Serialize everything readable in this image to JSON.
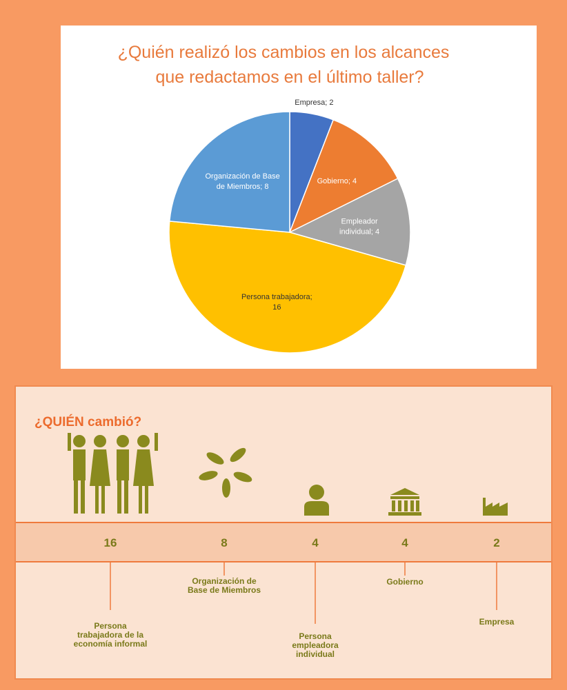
{
  "chart_data": {
    "type": "pie",
    "title": [
      "¿Quién realizó los cambios en los alcances",
      "que redactamos en el último taller?"
    ],
    "categories": [
      "Empresa",
      "Gobierno",
      "Empleador individual",
      "Persona trabajadora",
      "Organización de Base de Miembros"
    ],
    "values": [
      2,
      4,
      4,
      16,
      8
    ],
    "value_labels": [
      "Empresa; 2",
      "Gobierno; 4",
      "Empleador individual; 4",
      "Persona trabajadora; 16",
      "Organización de Base de Miembros; 8"
    ],
    "colors": [
      "#4472c4",
      "#ed7d31",
      "#a5a5a5",
      "#ffc000",
      "#5b9bd5"
    ]
  },
  "panel": {
    "title": "¿QUIÉN cambió?",
    "items": [
      {
        "value": 16,
        "label": [
          "Persona",
          "trabajadora de la",
          "economía informal"
        ]
      },
      {
        "value": 8,
        "label": [
          "Organización de",
          "Base de Miembros"
        ]
      },
      {
        "value": 4,
        "label": [
          "Persona",
          "empleadora",
          "individual"
        ]
      },
      {
        "value": 4,
        "label": [
          "Gobierno"
        ]
      },
      {
        "value": 2,
        "label": [
          "Empresa"
        ]
      }
    ]
  }
}
